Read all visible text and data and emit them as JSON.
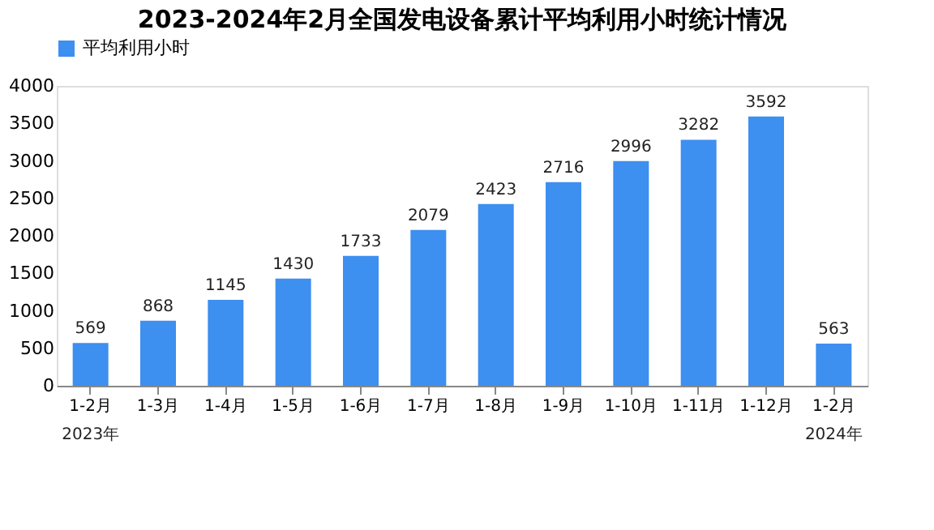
{
  "chart_data": {
    "type": "bar",
    "title": "2023-2024年2月全国发电设备累计平均利用小时统计情况",
    "categories": [
      "1-2月",
      "1-3月",
      "1-4月",
      "1-5月",
      "1-6月",
      "1-7月",
      "1-8月",
      "1-9月",
      "1-10月",
      "1-11月",
      "1-12月",
      "1-2月"
    ],
    "series": [
      {
        "name": "平均利用小时",
        "color": "#3d8ff0",
        "values": [
          569,
          868,
          1145,
          1430,
          1733,
          2079,
          2423,
          2716,
          2996,
          3282,
          3592,
          563
        ]
      }
    ],
    "ylim": [
      0,
      4000
    ],
    "yticks": [
      0,
      500,
      1000,
      1500,
      2000,
      2500,
      3000,
      3500,
      4000
    ],
    "grid": false,
    "legend": "top",
    "data_labels": true,
    "annotations": [
      "2023年",
      "2024年"
    ]
  }
}
